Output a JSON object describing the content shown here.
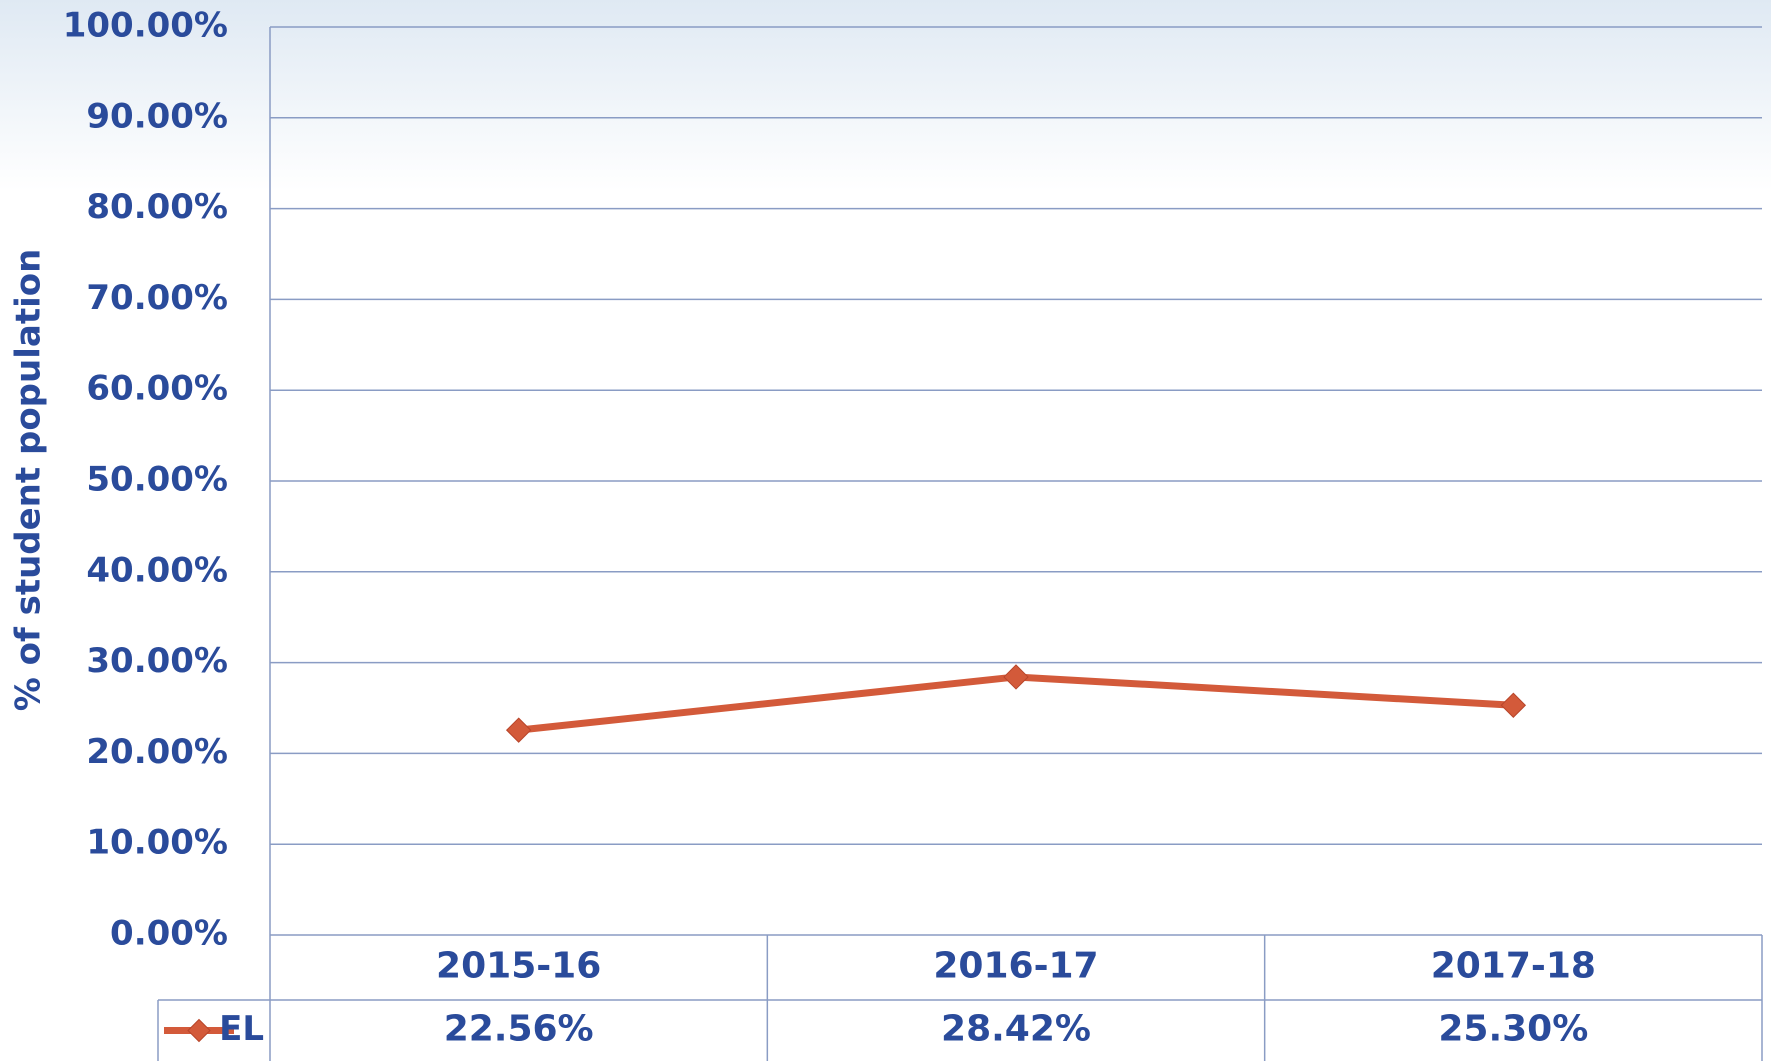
{
  "chart_data": {
    "type": "line",
    "y_label": "% of student population",
    "categories": [
      "2015-16",
      "2016-17",
      "2017-18"
    ],
    "series": [
      {
        "name": "EL",
        "color": "#d35a3a",
        "values": [
          22.56,
          28.42,
          25.3
        ],
        "value_labels": [
          "22.56%",
          "28.42%",
          "25.30%"
        ]
      }
    ],
    "ylim": [
      0,
      100
    ],
    "yticks": [
      {
        "value": 0,
        "label": "0.00%"
      },
      {
        "value": 10,
        "label": "10.00%"
      },
      {
        "value": 20,
        "label": "20.00%"
      },
      {
        "value": 30,
        "label": "30.00%"
      },
      {
        "value": 40,
        "label": "40.00%"
      },
      {
        "value": 50,
        "label": "50.00%"
      },
      {
        "value": 60,
        "label": "60.00%"
      },
      {
        "value": 70,
        "label": "70.00%"
      },
      {
        "value": 80,
        "label": "80.00%"
      },
      {
        "value": 90,
        "label": "90.00%"
      },
      {
        "value": 100,
        "label": "100.00%"
      }
    ],
    "grid": true
  }
}
